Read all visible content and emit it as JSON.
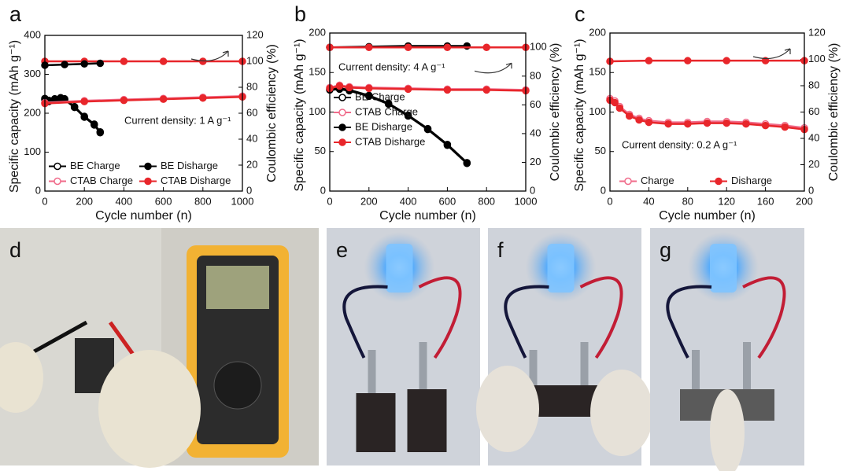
{
  "chart_data": [
    {
      "type": "line",
      "label": "a",
      "annotation": "Current density: 1 A g⁻¹",
      "xlabel": "Cycle number (n)",
      "ylabel": "Specific capacity (mAh g⁻¹)",
      "y2label": "Coulombic efficiency (%)",
      "xlim": [
        0,
        1000
      ],
      "xticks": [
        0,
        200,
        400,
        600,
        800,
        1000
      ],
      "ylim": [
        0,
        400
      ],
      "yticks": [
        0,
        100,
        200,
        300,
        400
      ],
      "y2lim": [
        0,
        120
      ],
      "y2ticks": [
        0,
        20,
        40,
        60,
        80,
        100,
        120
      ],
      "legend": "lower left",
      "legend_columns": 2,
      "series": [
        {
          "name": "BE Charge",
          "color": "#000000",
          "marker": "open",
          "x": [
            0,
            20,
            50,
            80,
            100,
            150,
            200,
            250,
            280
          ],
          "values": [
            238,
            233,
            237,
            240,
            237,
            217,
            192,
            172,
            152
          ]
        },
        {
          "name": "BE Disharge",
          "color": "#000000",
          "marker": "filled",
          "x": [
            0,
            20,
            50,
            80,
            100,
            150,
            200,
            250,
            280
          ],
          "values": [
            235,
            230,
            235,
            238,
            235,
            215,
            190,
            170,
            150
          ]
        },
        {
          "name": "CTAB Charge",
          "color": "#f06b8a",
          "marker": "open",
          "x": [
            0,
            200,
            400,
            600,
            800,
            1000
          ],
          "values": [
            227,
            232,
            235,
            238,
            241,
            244
          ]
        },
        {
          "name": "CTAB Disharge",
          "color": "#e8262b",
          "marker": "filled",
          "x": [
            0,
            200,
            400,
            600,
            800,
            1000
          ],
          "values": [
            225,
            230,
            233,
            236,
            239,
            242
          ]
        },
        {
          "color": "#e8262b",
          "marker": "filled",
          "axis": "y2",
          "x": [
            0,
            200,
            400,
            600,
            800,
            1000
          ],
          "values": [
            100,
            100,
            100,
            100,
            100,
            100
          ]
        },
        {
          "color": "#000000",
          "marker": "filled",
          "axis": "y2",
          "x": [
            0,
            100,
            200,
            280
          ],
          "values": [
            97,
            97.5,
            98,
            98.5
          ]
        }
      ]
    },
    {
      "type": "line",
      "label": "b",
      "annotation": "Current density: 4 A g⁻¹",
      "xlabel": "Cycle number (n)",
      "ylabel": "Specific capacity (mAh g⁻¹)",
      "y2label": "Coulombic efficiency (%)",
      "xlim": [
        0,
        1000
      ],
      "xticks": [
        0,
        200,
        400,
        600,
        800,
        1000
      ],
      "ylim": [
        0,
        200
      ],
      "yticks": [
        0,
        50,
        100,
        150,
        200
      ],
      "y2lim": [
        0,
        110
      ],
      "y2ticks": [
        0,
        20,
        40,
        60,
        80,
        100
      ],
      "legend": "center left",
      "legend_columns": 1,
      "series": [
        {
          "name": "BE Charge",
          "color": "#000000",
          "marker": "open",
          "x": [
            0,
            50,
            100,
            200,
            300,
            400,
            500,
            600,
            700
          ],
          "values": [
            129,
            130,
            128,
            121,
            111,
            96,
            79,
            59,
            36
          ]
        },
        {
          "name": "CTAB Charge",
          "color": "#f06b8a",
          "marker": "open",
          "x": [
            0,
            50,
            100,
            200,
            400,
            600,
            800,
            1000
          ],
          "values": [
            131,
            134,
            132,
            131,
            130,
            129,
            129,
            128
          ]
        },
        {
          "name": "BE Disharge",
          "color": "#000000",
          "marker": "filled",
          "x": [
            0,
            50,
            100,
            200,
            300,
            400,
            500,
            600,
            700
          ],
          "values": [
            128,
            129,
            127,
            120,
            110,
            95,
            78,
            58,
            35
          ]
        },
        {
          "name": "CTAB Disharge",
          "color": "#e8262b",
          "marker": "filled",
          "x": [
            0,
            50,
            100,
            200,
            400,
            600,
            800,
            1000
          ],
          "values": [
            130,
            133,
            131,
            130,
            129,
            128,
            128,
            127
          ]
        },
        {
          "color": "#000000",
          "marker": "filled",
          "axis": "y2",
          "x": [
            0,
            200,
            400,
            600,
            700
          ],
          "values": [
            100,
            100.5,
            101,
            101,
            101
          ]
        },
        {
          "color": "#e8262b",
          "marker": "filled",
          "axis": "y2",
          "x": [
            0,
            200,
            400,
            600,
            800,
            1000
          ],
          "values": [
            100,
            100,
            100,
            100,
            100,
            100
          ]
        }
      ]
    },
    {
      "type": "line",
      "label": "c",
      "annotation": "Current density: 0.2 A g⁻¹",
      "xlabel": "Cycle number (n)",
      "ylabel": "Specific capacity (mAh g⁻¹)",
      "y2label": "Coulombic efficiency (%)",
      "xlim": [
        0,
        200
      ],
      "xticks": [
        0,
        40,
        80,
        120,
        160,
        200
      ],
      "ylim": [
        0,
        200
      ],
      "yticks": [
        0,
        50,
        100,
        150,
        200
      ],
      "y2lim": [
        0,
        120
      ],
      "y2ticks": [
        0,
        20,
        40,
        60,
        80,
        100,
        120
      ],
      "legend": "lower right",
      "legend_columns": 2,
      "series": [
        {
          "name": "Charge",
          "color": "#f06b8a",
          "marker": "open",
          "x": [
            0,
            5,
            10,
            20,
            30,
            40,
            60,
            80,
            100,
            120,
            140,
            160,
            180,
            200
          ],
          "values": [
            117,
            114,
            107,
            97,
            92,
            89,
            87,
            87,
            88,
            88,
            87,
            85,
            83,
            80
          ]
        },
        {
          "name": "Disharge",
          "color": "#e8262b",
          "marker": "filled",
          "x": [
            0,
            5,
            10,
            20,
            30,
            40,
            60,
            80,
            100,
            120,
            140,
            160,
            180,
            200
          ],
          "values": [
            115,
            112,
            105,
            95,
            90,
            87,
            85,
            85,
            86,
            86,
            85,
            83,
            81,
            78
          ]
        },
        {
          "color": "#e8262b",
          "marker": "filled",
          "axis": "y2",
          "x": [
            0,
            40,
            80,
            120,
            160,
            200
          ],
          "values": [
            98.5,
            99,
            99,
            99,
            99,
            99
          ]
        }
      ]
    }
  ],
  "photos": [
    {
      "label": "d"
    },
    {
      "label": "e"
    },
    {
      "label": "f"
    },
    {
      "label": "g"
    }
  ]
}
